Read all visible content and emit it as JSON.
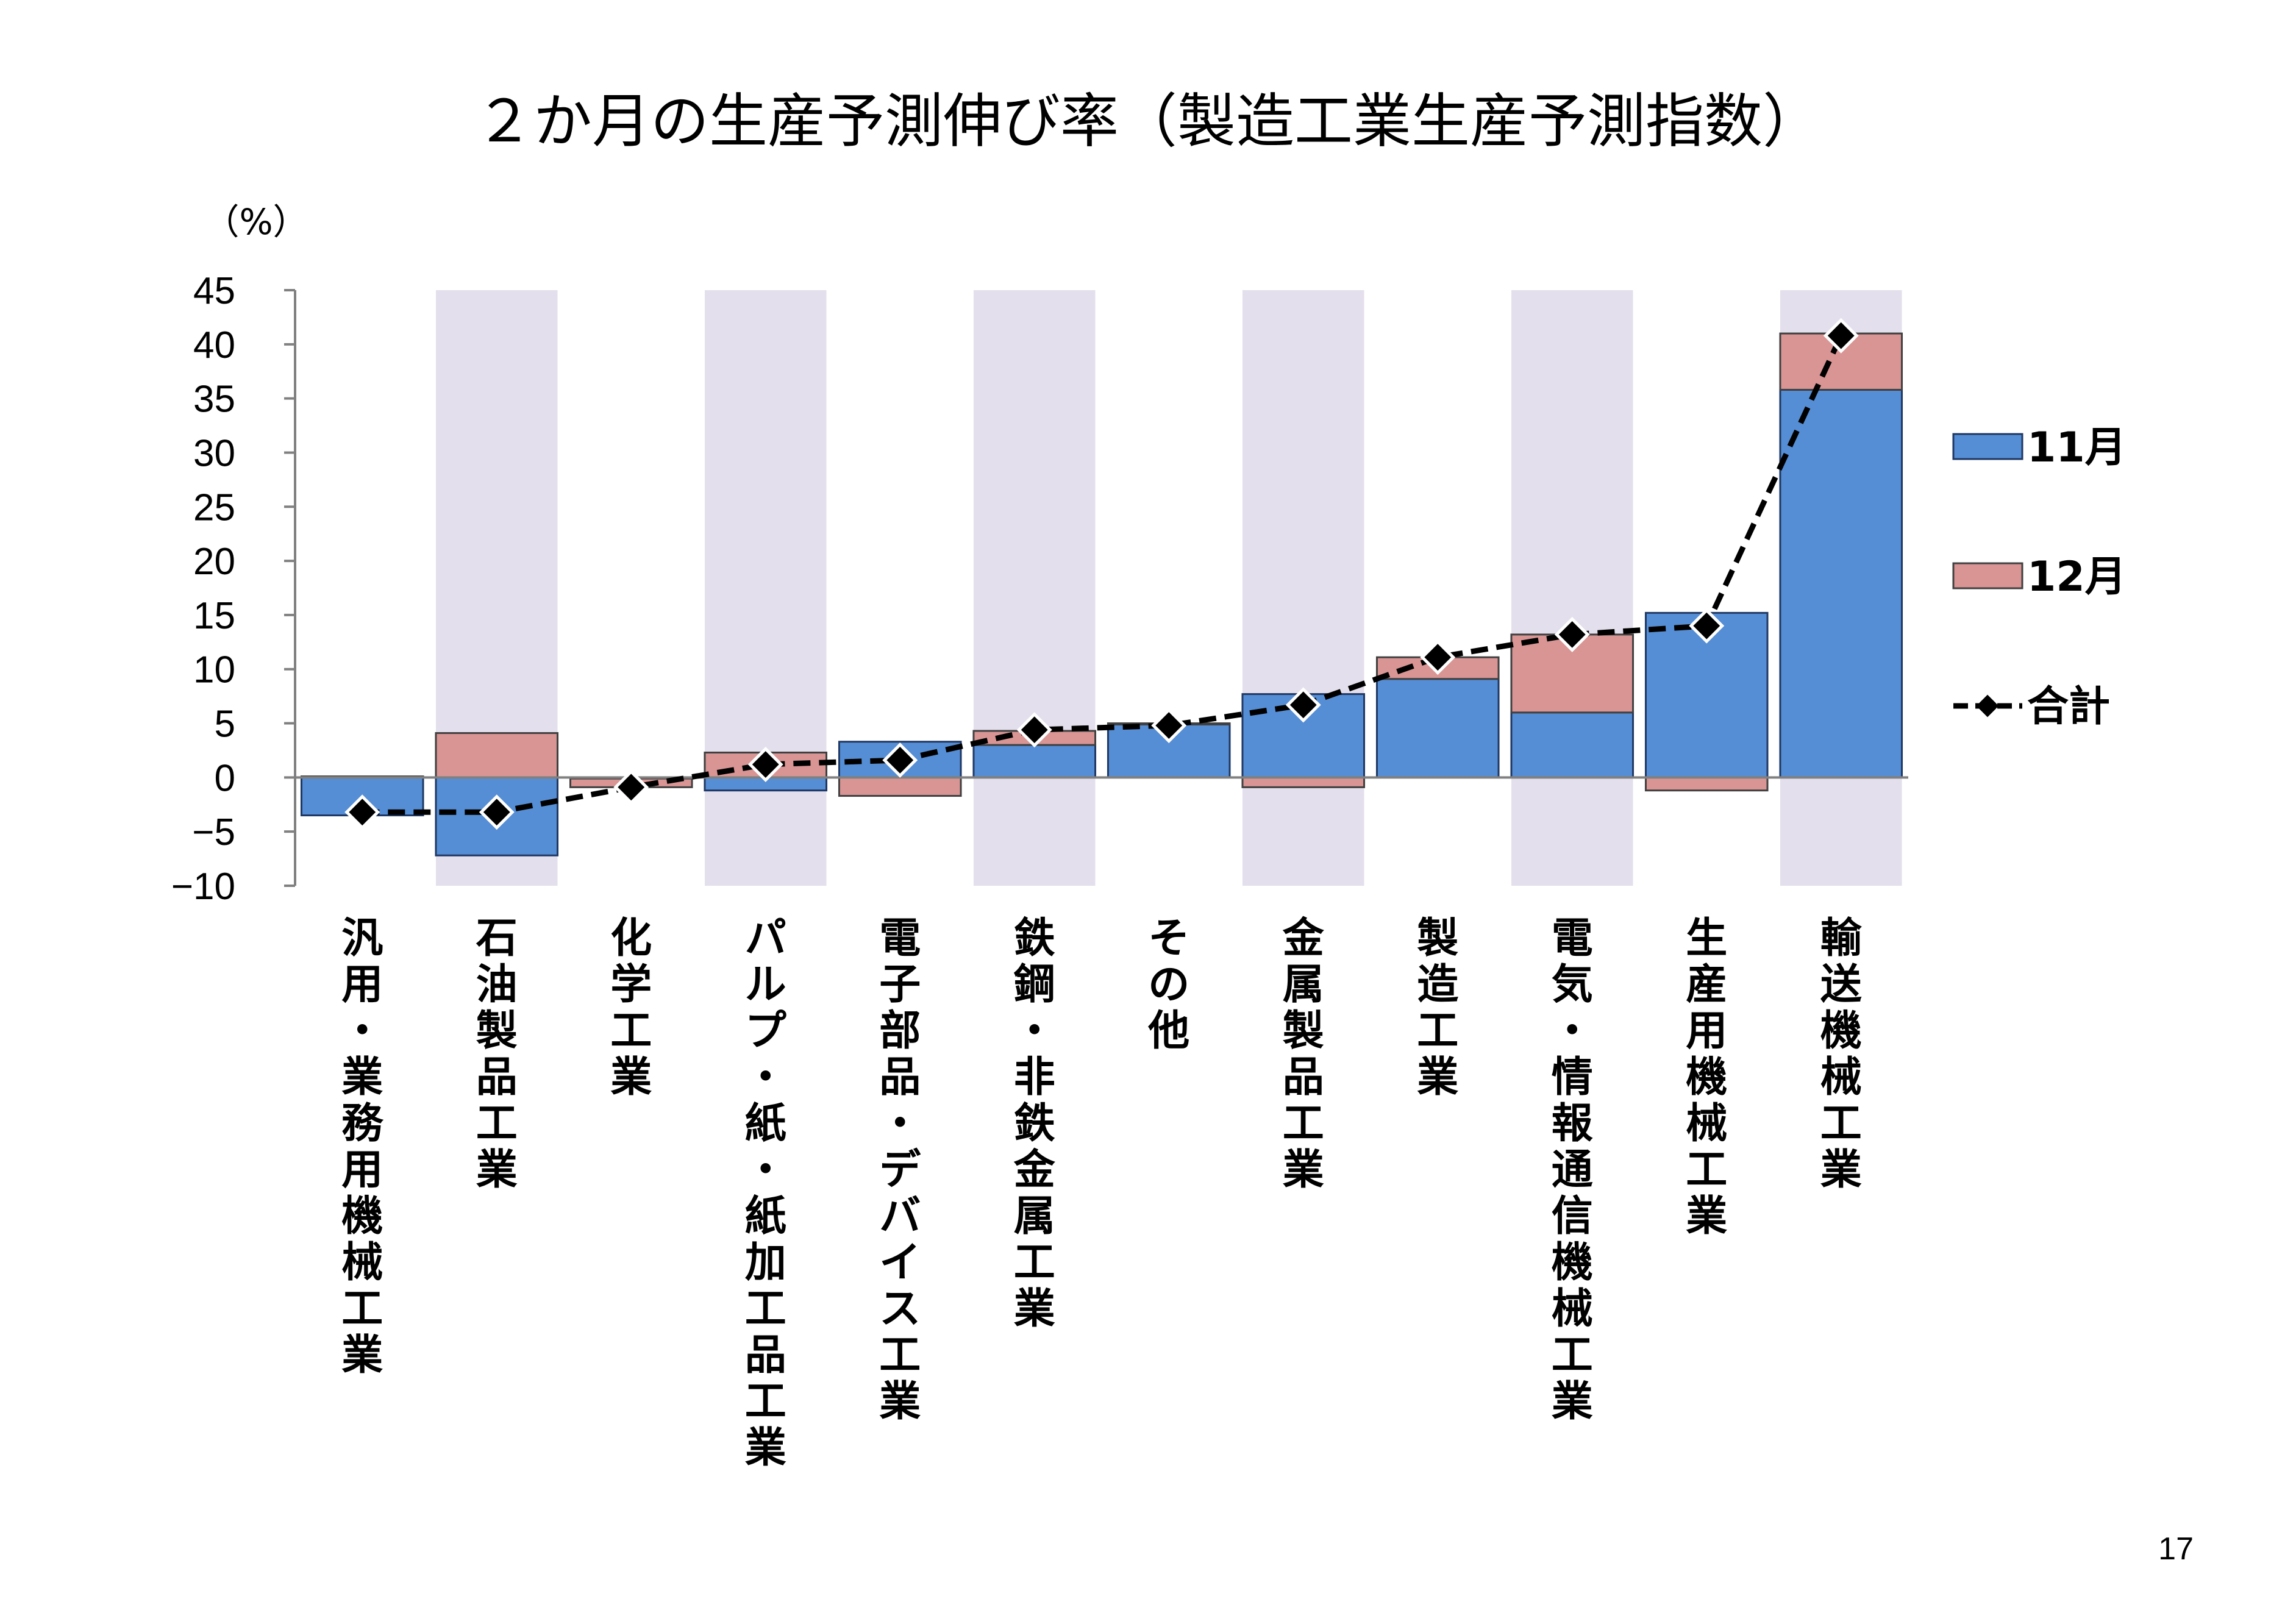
{
  "page_number": "17",
  "chart_data": {
    "type": "bar",
    "title": "２か月の生産予測伸び率（製造工業生産予測指数）",
    "ylabel": "（%）",
    "xlabel": "",
    "ylim": [
      -10,
      45
    ],
    "yticks": [
      "45",
      "40",
      "35",
      "30",
      "25",
      "20",
      "15",
      "10",
      "5",
      "0",
      "−5",
      "−10"
    ],
    "ytick_values": [
      45,
      40,
      35,
      30,
      25,
      20,
      15,
      10,
      5,
      0,
      -5,
      -10
    ],
    "stacked": true,
    "shaded_categories": [
      1,
      3,
      5,
      7,
      9,
      11
    ],
    "categories": [
      "汎用・業務用機械工業",
      "石油製品工業",
      "化学工業",
      "パルプ・紙・紙加工品工業",
      "電子部品・デバイス工業",
      "鉄鋼・非鉄金属工業",
      "その他",
      "金属製品工業",
      "製造工業",
      "電気・情報通信機械工業",
      "生産用機械工業",
      "輸送機械工業"
    ],
    "series": [
      {
        "name": "11月",
        "type": "bar",
        "color": "#558ED5",
        "values": [
          -3.5,
          -7.2,
          -0.1,
          -1.2,
          3.3,
          3.0,
          4.9,
          7.7,
          9.1,
          6.0,
          15.2,
          35.8
        ]
      },
      {
        "name": "12月",
        "type": "bar",
        "color": "#D99594",
        "values": [
          0.1,
          4.1,
          -0.8,
          2.3,
          -1.7,
          1.3,
          0.1,
          -0.9,
          2.0,
          7.2,
          -1.2,
          5.2
        ]
      },
      {
        "name": "合計",
        "type": "line",
        "color": "#000000",
        "values": [
          -3.2,
          -3.2,
          -0.9,
          1.2,
          1.6,
          4.4,
          4.8,
          6.7,
          11.1,
          13.2,
          14.0,
          40.8
        ]
      }
    ],
    "legend_position": "right",
    "grid": false
  }
}
